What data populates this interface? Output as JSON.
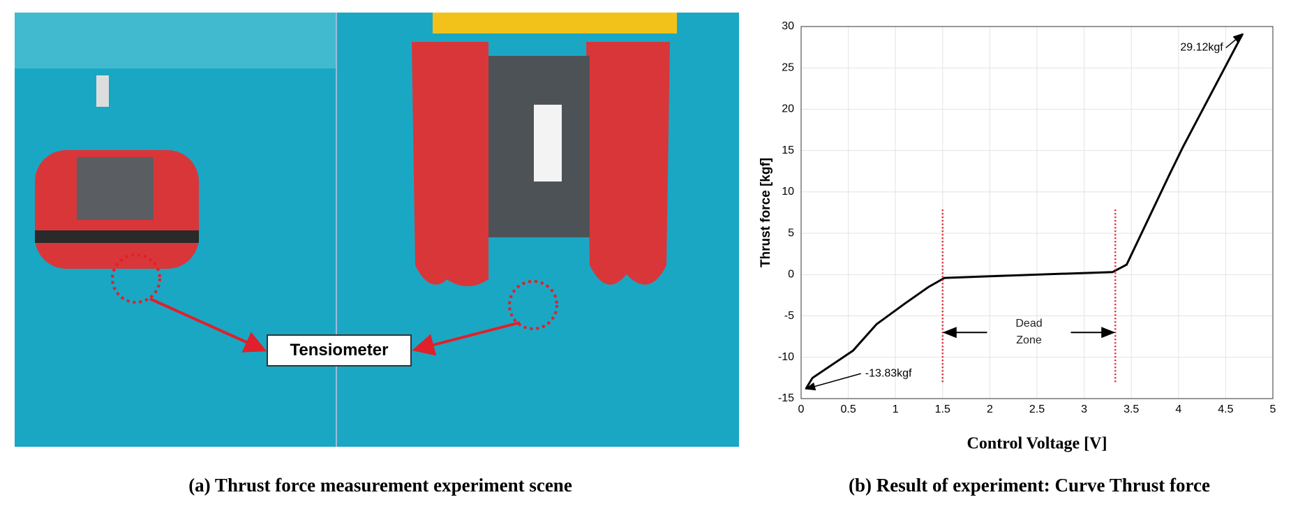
{
  "photo": {
    "label": "Tensiometer"
  },
  "captions": [
    "(a) Thrust force measurement experiment scene",
    "(b) Result of experiment: Curve Thrust force"
  ],
  "chart_data": {
    "type": "line",
    "xlabel": "Control Voltage [V]",
    "ylabel": "Thrust force [kgf]",
    "x": [
      0.05,
      0.12,
      0.55,
      0.8,
      1.1,
      1.35,
      1.52,
      2.5,
      3.3,
      3.45,
      3.9,
      4.05,
      4.68
    ],
    "values": [
      -13.83,
      -12.5,
      -9.2,
      -6,
      -3.5,
      -1.5,
      -0.4,
      0,
      0.3,
      1.2,
      12,
      15.5,
      29.12
    ],
    "color": "#000000",
    "xlim": [
      0,
      5
    ],
    "xticks": [
      0,
      0.5,
      1,
      1.5,
      2,
      2.5,
      3,
      3.5,
      4,
      4.5,
      5
    ],
    "ylim": [
      -15,
      30
    ],
    "yticks": [
      -15,
      -10,
      -5,
      0,
      5,
      10,
      15,
      20,
      25,
      30
    ],
    "grid": true,
    "annotations": [
      {
        "text": "29.12kgf",
        "x": 4.68,
        "y": 29.12
      },
      {
        "text": "-13.83kgf",
        "x": 0.05,
        "y": -13.83
      }
    ],
    "dead_zone": {
      "text": "Dead Zone",
      "x": [
        1.5,
        3.33
      ],
      "y": [
        -13,
        8
      ],
      "arrow_y": -7,
      "color": "#e0202a"
    }
  }
}
